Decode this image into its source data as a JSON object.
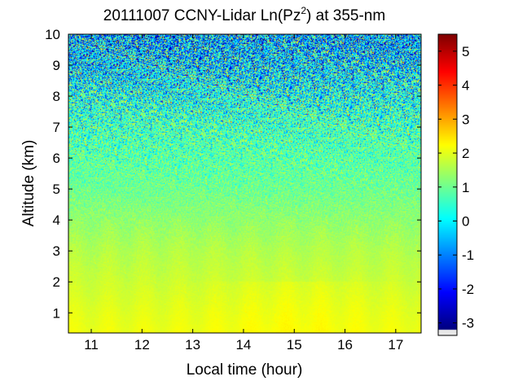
{
  "chart_data": {
    "type": "heatmap",
    "title": {
      "main": "20111007 CCNY-Lidar Ln(Pz",
      "superscript": "2",
      "suffix": ") at 355-nm"
    },
    "xlabel": "Local time (hour)",
    "ylabel": "Altitude (km)",
    "xlim": [
      10.55,
      17.5
    ],
    "ylim": [
      0.35,
      10
    ],
    "xticks": [
      11,
      12,
      13,
      14,
      15,
      16,
      17
    ],
    "yticks": [
      1,
      2,
      3,
      4,
      5,
      6,
      7,
      8,
      9,
      10
    ],
    "colorbar": {
      "colormap": "jet",
      "range": [
        -3.2,
        5.5
      ],
      "ticks": [
        5,
        4,
        3,
        2,
        1,
        0,
        -1,
        -2,
        -3
      ],
      "under_color": "#e8e8e8"
    },
    "profile": {
      "altitude_km": [
        0.35,
        1.0,
        2.0,
        3.0,
        4.0,
        5.0,
        6.0,
        7.0,
        8.0,
        9.0,
        10.0
      ],
      "mean_value": [
        2.1,
        2.0,
        1.8,
        1.6,
        1.3,
        1.0,
        0.8,
        0.6,
        0.2,
        -0.3,
        -0.7
      ],
      "noise_std": [
        0.03,
        0.05,
        0.07,
        0.1,
        0.2,
        0.35,
        0.6,
        0.9,
        1.2,
        1.5,
        1.7
      ]
    },
    "colors": {
      "under": "#e8e8e8",
      "axis": "#000000"
    }
  }
}
